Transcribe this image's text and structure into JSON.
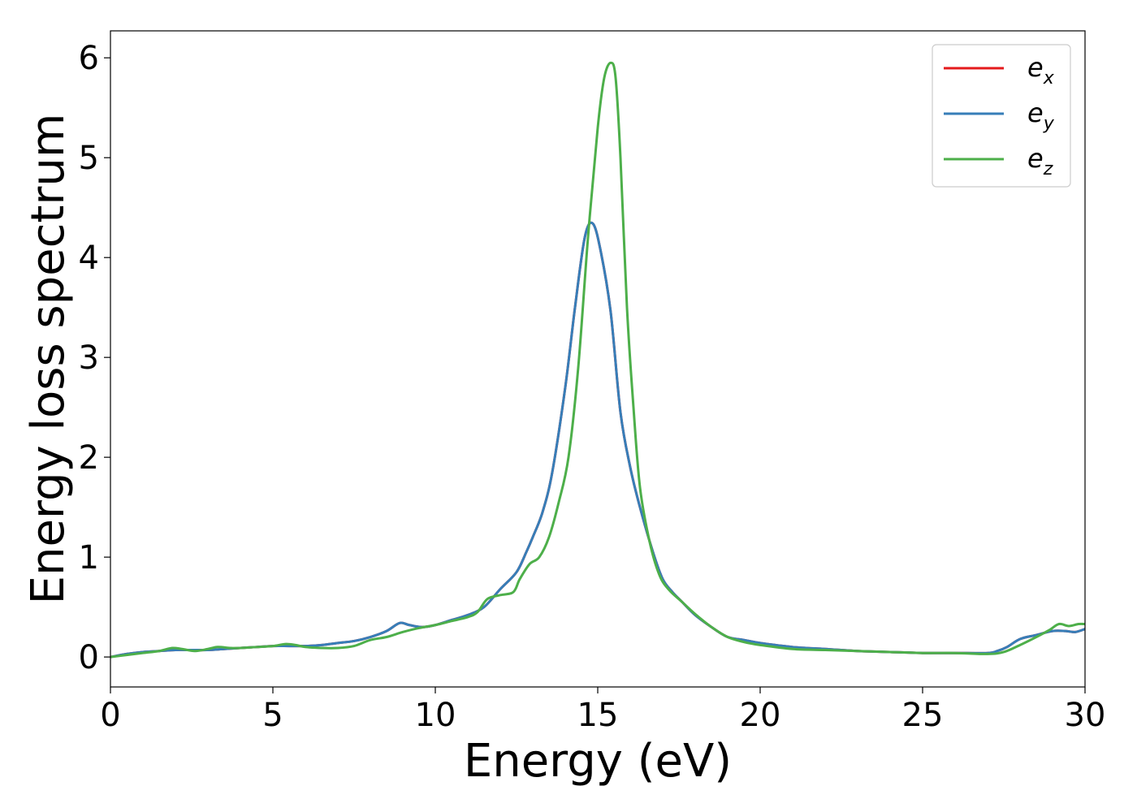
{
  "chart_data": {
    "type": "line",
    "title": "",
    "xlabel": "Energy (eV)",
    "ylabel": "Energy loss spectrum",
    "xlim": [
      0,
      30
    ],
    "ylim": [
      -0.3,
      6.27
    ],
    "xticks": [
      0,
      5,
      10,
      15,
      20,
      25,
      30
    ],
    "yticks": [
      0,
      1,
      2,
      3,
      4,
      5,
      6
    ],
    "grid": false,
    "legend_position": "top-right",
    "series": [
      {
        "name": "e_x",
        "base": "e",
        "sub": "x",
        "color": "#e41a1c",
        "x": [
          0,
          0.5,
          1,
          1.5,
          2,
          2.5,
          3,
          3.5,
          4,
          4.5,
          5,
          5.5,
          6,
          6.5,
          7,
          7.5,
          8,
          8.5,
          8.9,
          9.2,
          9.6,
          10,
          10.5,
          11,
          11.5,
          12,
          12.5,
          12.8,
          13,
          13.3,
          13.6,
          14,
          14.3,
          14.6,
          14.85,
          15.1,
          15.4,
          15.7,
          16,
          16.3,
          16.7,
          17,
          17.3,
          17.6,
          18,
          18.5,
          19,
          19.5,
          20,
          21,
          22,
          23,
          24,
          25,
          26,
          27,
          27.3,
          27.6,
          28,
          28.5,
          29,
          29.4,
          29.7,
          30
        ],
        "y": [
          0,
          0.03,
          0.05,
          0.06,
          0.07,
          0.07,
          0.07,
          0.08,
          0.09,
          0.1,
          0.11,
          0.11,
          0.11,
          0.12,
          0.14,
          0.16,
          0.2,
          0.26,
          0.34,
          0.32,
          0.3,
          0.32,
          0.37,
          0.42,
          0.5,
          0.68,
          0.85,
          1.05,
          1.2,
          1.45,
          1.85,
          2.7,
          3.5,
          4.2,
          4.34,
          4.05,
          3.45,
          2.45,
          1.9,
          1.5,
          1.05,
          0.78,
          0.65,
          0.55,
          0.42,
          0.3,
          0.2,
          0.17,
          0.14,
          0.1,
          0.08,
          0.06,
          0.05,
          0.04,
          0.04,
          0.04,
          0.06,
          0.1,
          0.18,
          0.22,
          0.26,
          0.26,
          0.25,
          0.28
        ]
      },
      {
        "name": "e_y",
        "base": "e",
        "sub": "y",
        "color": "#377eb8",
        "x": [
          0,
          0.5,
          1,
          1.5,
          2,
          2.5,
          3,
          3.5,
          4,
          4.5,
          5,
          5.5,
          6,
          6.5,
          7,
          7.5,
          8,
          8.5,
          8.9,
          9.2,
          9.6,
          10,
          10.5,
          11,
          11.5,
          12,
          12.5,
          12.8,
          13,
          13.3,
          13.6,
          14,
          14.3,
          14.6,
          14.85,
          15.1,
          15.4,
          15.7,
          16,
          16.3,
          16.7,
          17,
          17.3,
          17.6,
          18,
          18.5,
          19,
          19.5,
          20,
          21,
          22,
          23,
          24,
          25,
          26,
          27,
          27.3,
          27.6,
          28,
          28.5,
          29,
          29.4,
          29.7,
          30
        ],
        "y": [
          0,
          0.03,
          0.05,
          0.06,
          0.07,
          0.07,
          0.07,
          0.08,
          0.09,
          0.1,
          0.11,
          0.11,
          0.11,
          0.12,
          0.14,
          0.16,
          0.2,
          0.26,
          0.34,
          0.32,
          0.3,
          0.32,
          0.37,
          0.42,
          0.5,
          0.68,
          0.85,
          1.05,
          1.2,
          1.45,
          1.85,
          2.7,
          3.5,
          4.2,
          4.34,
          4.05,
          3.45,
          2.45,
          1.9,
          1.5,
          1.05,
          0.78,
          0.65,
          0.55,
          0.42,
          0.3,
          0.2,
          0.17,
          0.14,
          0.1,
          0.08,
          0.06,
          0.05,
          0.04,
          0.04,
          0.04,
          0.06,
          0.1,
          0.18,
          0.22,
          0.26,
          0.26,
          0.25,
          0.28
        ]
      },
      {
        "name": "e_z",
        "base": "e",
        "sub": "z",
        "color": "#4daf4a",
        "x": [
          0,
          0.5,
          1,
          1.5,
          1.9,
          2.2,
          2.6,
          3,
          3.3,
          3.7,
          4,
          4.5,
          5,
          5.4,
          5.7,
          6,
          6.5,
          7,
          7.5,
          8,
          8.5,
          9,
          9.5,
          10,
          10.5,
          11,
          11.3,
          11.6,
          12,
          12.4,
          12.6,
          12.9,
          13.2,
          13.5,
          13.8,
          14.1,
          14.4,
          14.7,
          15,
          15.2,
          15.4,
          15.55,
          15.7,
          15.9,
          16.1,
          16.3,
          16.6,
          16.9,
          17.2,
          17.6,
          18,
          18.5,
          19,
          19.5,
          20,
          21,
          22,
          23,
          24,
          25,
          26,
          27,
          27.5,
          28,
          28.5,
          28.9,
          29.2,
          29.5,
          29.8,
          30
        ],
        "y": [
          0,
          0.02,
          0.04,
          0.06,
          0.09,
          0.08,
          0.06,
          0.08,
          0.1,
          0.09,
          0.09,
          0.1,
          0.11,
          0.13,
          0.12,
          0.1,
          0.09,
          0.09,
          0.11,
          0.17,
          0.2,
          0.25,
          0.29,
          0.32,
          0.36,
          0.4,
          0.45,
          0.58,
          0.62,
          0.65,
          0.78,
          0.93,
          1.0,
          1.2,
          1.55,
          2.0,
          2.9,
          4.2,
          5.3,
          5.8,
          5.95,
          5.8,
          5.0,
          3.5,
          2.5,
          1.7,
          1.15,
          0.82,
          0.67,
          0.55,
          0.43,
          0.3,
          0.2,
          0.15,
          0.12,
          0.08,
          0.07,
          0.06,
          0.05,
          0.04,
          0.04,
          0.03,
          0.05,
          0.12,
          0.2,
          0.27,
          0.33,
          0.31,
          0.33,
          0.33
        ]
      }
    ]
  }
}
